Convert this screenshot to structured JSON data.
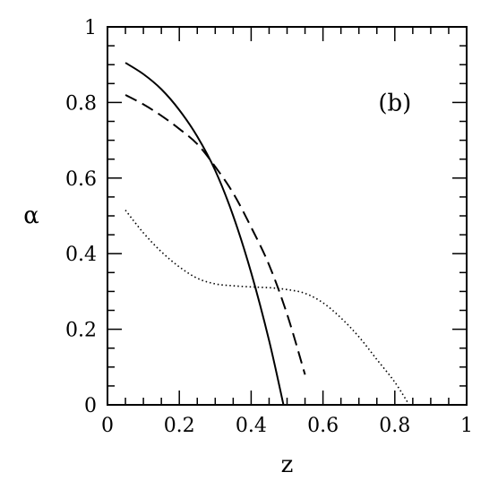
{
  "chart_data": {
    "type": "line",
    "title": "",
    "xlabel": "z",
    "ylabel": "α",
    "xlim": [
      0,
      1
    ],
    "ylim": [
      0,
      1
    ],
    "x_ticks": [
      "0",
      "0.2",
      "0.4",
      "0.6",
      "0.8",
      "1"
    ],
    "y_ticks": [
      "0",
      "0.2",
      "0.4",
      "0.6",
      "0.8",
      "1"
    ],
    "x_tick_values": [
      0,
      0.2,
      0.4,
      0.6,
      0.8,
      1
    ],
    "y_tick_values": [
      0,
      0.2,
      0.4,
      0.6,
      0.8,
      1
    ],
    "minor_step": 0.05,
    "grid": false,
    "legend": "none",
    "annotation": "(b)",
    "series": [
      {
        "style": "solid",
        "x": [
          0.05,
          0.1,
          0.15,
          0.2,
          0.25,
          0.3,
          0.35,
          0.4,
          0.45,
          0.49
        ],
        "y": [
          0.905,
          0.875,
          0.835,
          0.78,
          0.71,
          0.62,
          0.5,
          0.35,
          0.17,
          0.0
        ]
      },
      {
        "style": "dashed",
        "x": [
          0.05,
          0.1,
          0.15,
          0.2,
          0.25,
          0.3,
          0.35,
          0.4,
          0.45,
          0.5,
          0.55
        ],
        "y": [
          0.82,
          0.795,
          0.765,
          0.73,
          0.69,
          0.63,
          0.56,
          0.47,
          0.37,
          0.24,
          0.08
        ]
      },
      {
        "style": "dotted",
        "x": [
          0.05,
          0.1,
          0.15,
          0.2,
          0.25,
          0.3,
          0.35,
          0.4,
          0.45,
          0.5,
          0.55,
          0.6,
          0.65,
          0.7,
          0.75,
          0.8,
          0.84
        ],
        "y": [
          0.515,
          0.455,
          0.405,
          0.365,
          0.335,
          0.32,
          0.315,
          0.312,
          0.31,
          0.305,
          0.295,
          0.27,
          0.23,
          0.18,
          0.12,
          0.06,
          0.0
        ]
      }
    ]
  }
}
